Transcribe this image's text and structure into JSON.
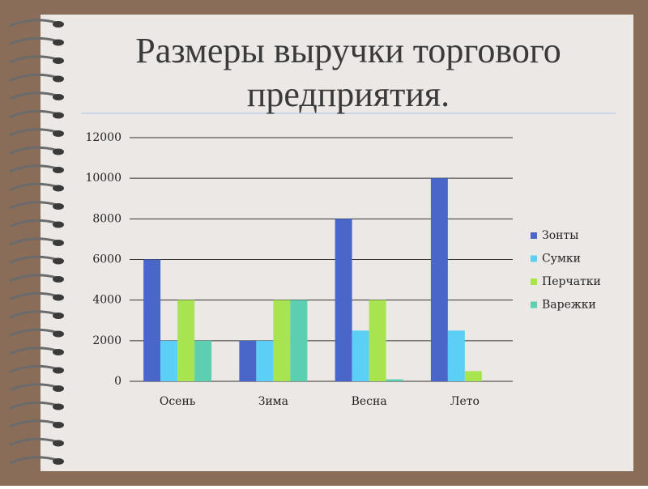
{
  "chart_data": {
    "type": "bar",
    "title": "Размеры выручки торгового предприятия.",
    "categories": [
      "Осень",
      "Зима",
      "Весна",
      "Лето"
    ],
    "series": [
      {
        "name": "Зонты",
        "color": "#4a66c9",
        "values": [
          6000,
          2000,
          8000,
          10000
        ]
      },
      {
        "name": "Сумки",
        "color": "#5bcff5",
        "values": [
          2000,
          2000,
          2500,
          2500
        ]
      },
      {
        "name": "Перчатки",
        "color": "#a8e44f",
        "values": [
          4000,
          4000,
          4000,
          500
        ]
      },
      {
        "name": "Варежки",
        "color": "#5ccfb0",
        "values": [
          2000,
          4000,
          100,
          0
        ]
      }
    ],
    "ylim": [
      0,
      12000
    ],
    "yticks": [
      0,
      2000,
      4000,
      6000,
      8000,
      10000,
      12000
    ],
    "grid": true,
    "legend": "right"
  }
}
